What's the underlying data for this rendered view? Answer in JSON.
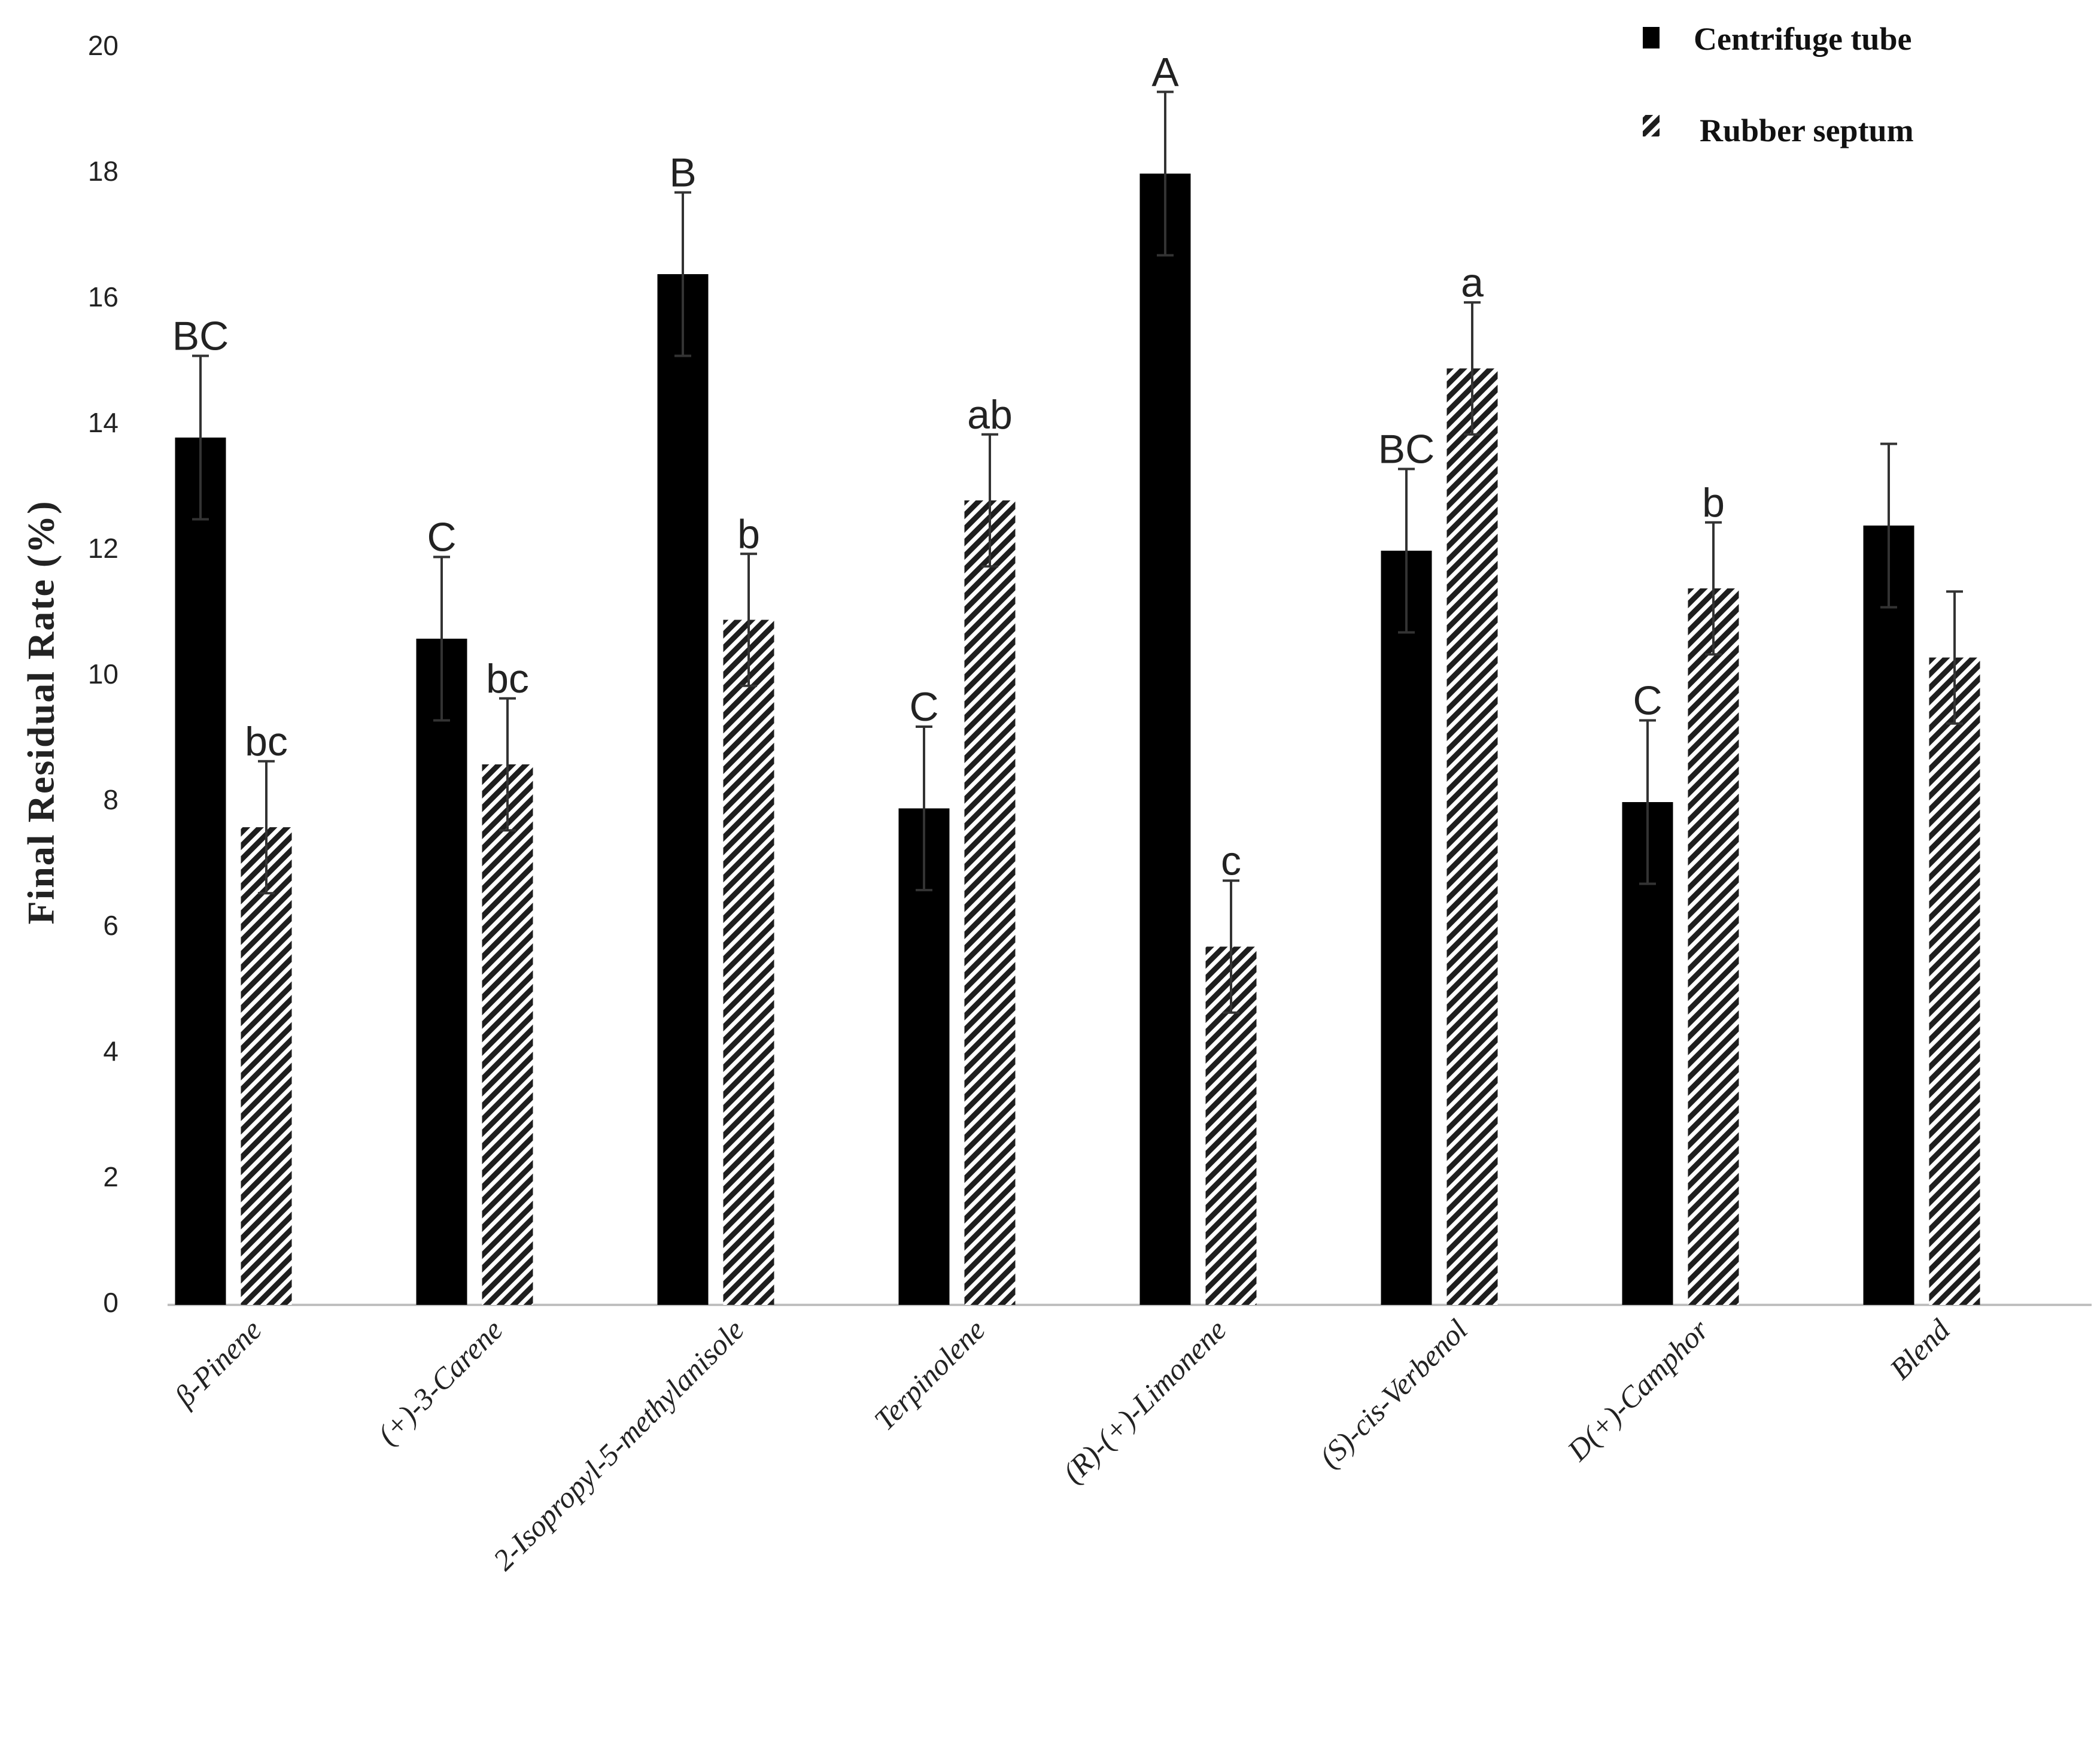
{
  "chart_data": {
    "type": "bar",
    "title": "",
    "xlabel": "",
    "ylabel": "Final Residual Rate (%)",
    "ylim": [
      0,
      20
    ],
    "yticks": [
      0,
      2,
      4,
      6,
      8,
      10,
      12,
      14,
      16,
      18,
      20
    ],
    "grid": false,
    "legend_position": "top-right",
    "categories": [
      "β-Pinene",
      "(+)-3-Carene",
      "2-Isopropyl-5-methylanisole",
      "Terpinolene",
      "(R)-(+)-Limonene",
      "(S)-cis-Verbenol",
      "D(+)-Camphor",
      "Blend"
    ],
    "series": [
      {
        "name": "Centrifuge tube",
        "color": "#000000",
        "pattern": "solid",
        "values": [
          13.8,
          10.6,
          16.4,
          7.9,
          18.0,
          12.0,
          8.0,
          12.4
        ],
        "errors": [
          1.3,
          1.3,
          1.3,
          1.3,
          1.3,
          1.3,
          1.3,
          1.3
        ],
        "sig_letters": [
          "BC",
          "C",
          "B",
          "C",
          "A",
          "BC",
          "C",
          ""
        ]
      },
      {
        "name": "Rubber septum",
        "color": "#2a2a2a",
        "pattern": "hatch",
        "values": [
          7.6,
          8.6,
          10.9,
          12.8,
          5.7,
          14.9,
          11.4,
          10.3
        ],
        "errors": [
          1.05,
          1.05,
          1.05,
          1.05,
          1.05,
          1.05,
          1.05,
          1.05
        ],
        "sig_letters": [
          "bc",
          "bc",
          "b",
          "ab",
          "c",
          "a",
          "b",
          ""
        ]
      }
    ]
  }
}
